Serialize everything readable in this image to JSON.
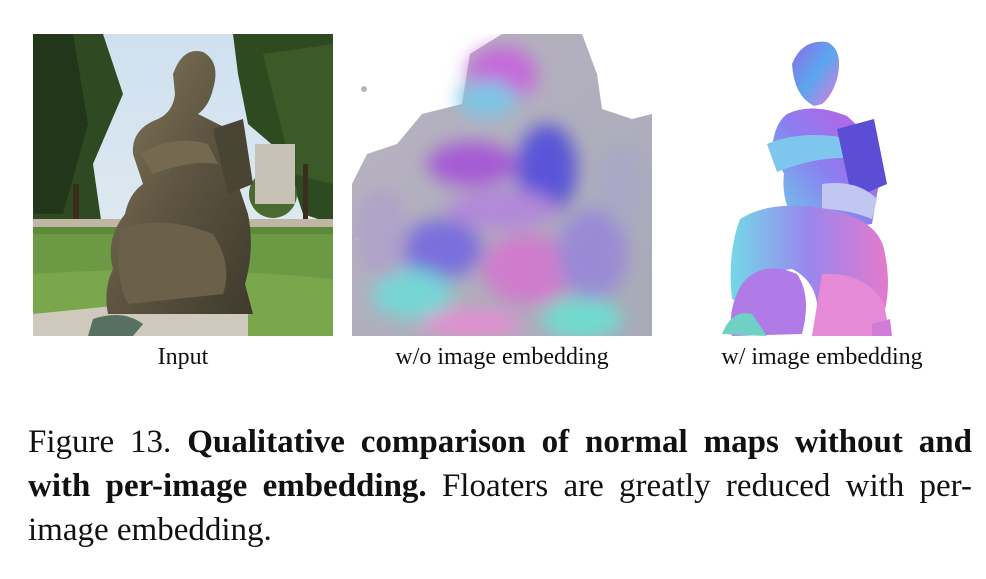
{
  "figure": {
    "panels": [
      {
        "id": "input",
        "label": "Input",
        "icon": "statue-photo"
      },
      {
        "id": "wo",
        "label": "w/o image embedding",
        "icon": "noisy-normal-map"
      },
      {
        "id": "w",
        "label": "w/ image embedding",
        "icon": "clean-normal-map"
      }
    ]
  },
  "caption": {
    "figure_number": "Figure 13.",
    "bold_text": "Qualitative comparison of normal maps without and with per-image embedding.",
    "body_text": "Floaters are greatly reduced with per-image embedding."
  }
}
